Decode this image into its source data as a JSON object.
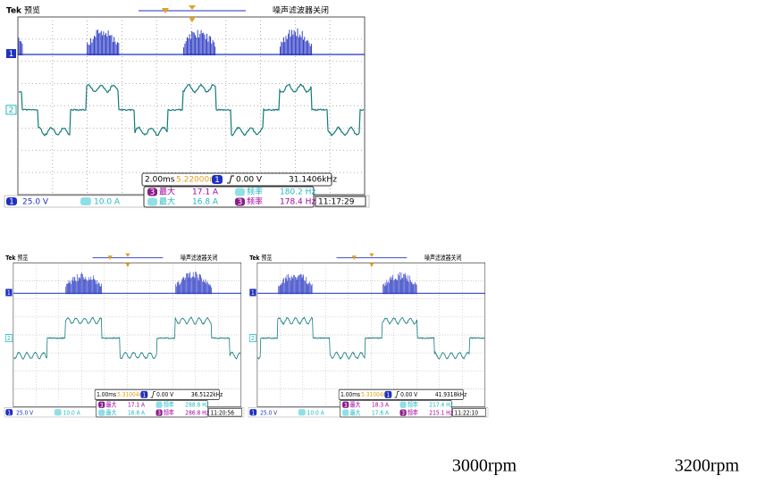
{
  "panels": [
    {
      "header": {
        "brand": "Tek",
        "mode": "预览",
        "status": "噪声滤波器关闭"
      },
      "channels": [
        "1",
        "2"
      ],
      "readout": {
        "timebase": "2.00ms",
        "position": "5.22000ms",
        "trigger_channel": "1",
        "trigger_level": "0.00 V",
        "frequency": "31.1406kHz"
      },
      "status": {
        "ch1_channel": "1",
        "ch1_scale": "25.0 V",
        "ch2_scale": "10.0 A",
        "measurements": [
          {
            "source": "3",
            "label": "最大",
            "value": "17.1 A",
            "color": "#a000a0"
          },
          {
            "label": "频率",
            "value": "180.2 Hz",
            "color": "#20b8c0"
          },
          {
            "label": "最大",
            "value": "16.8 A",
            "color": "#20b8c0"
          },
          {
            "source": "3",
            "label": "频率",
            "value": "178.4 Hz",
            "color": "#a000a0"
          }
        ],
        "time": "11:17:29"
      }
    },
    {
      "header": {
        "brand": "Tek",
        "mode": "预览",
        "status": "噪声滤波器关闭"
      },
      "channels": [
        "1",
        "2"
      ],
      "readout": {
        "timebase": "1.00ms",
        "position": "5.31004ms",
        "trigger_channel": "1",
        "trigger_level": "0.00 V",
        "frequency": "36.5122kHz"
      },
      "status": {
        "ch1_channel": "1",
        "ch1_scale": "25.0 V",
        "ch2_scale": "10.0 A",
        "measurements": [
          {
            "source": "3",
            "label": "最大",
            "value": "17.1 A",
            "color": "#a000a0"
          },
          {
            "label": "频率",
            "value": "288.8 Hz",
            "color": "#20b8c0"
          },
          {
            "label": "最大",
            "value": "16.8 A",
            "color": "#20b8c0"
          },
          {
            "source": "3",
            "label": "频率",
            "value": "286.8 Hz",
            "color": "#a000a0"
          }
        ],
        "time": "11:20:56"
      }
    },
    {
      "header": {
        "brand": "Tek",
        "mode": "预览",
        "status": "噪声滤波器关闭"
      },
      "channels": [
        "1",
        "2"
      ],
      "readout": {
        "timebase": "1.00ms",
        "position": "5.31004ms",
        "trigger_channel": "1",
        "trigger_level": "0.00 V",
        "frequency": "41.9318kHz"
      },
      "status": {
        "ch1_channel": "1",
        "ch1_scale": "25.0 V",
        "ch2_scale": "10.0 A",
        "measurements": [
          {
            "source": "3",
            "label": "最大",
            "value": "18.3 A",
            "color": "#a000a0"
          },
          {
            "label": "频率",
            "value": "217.4 Hz",
            "color": "#20b8c0"
          },
          {
            "label": "最大",
            "value": "17.6 A",
            "color": "#20b8c0"
          },
          {
            "source": "3",
            "label": "频率",
            "value": "215.1 Hz",
            "color": "#a000a0"
          }
        ],
        "time": "11:22:10"
      }
    }
  ],
  "labels": [
    "3000rpm",
    "3200rpm"
  ]
}
